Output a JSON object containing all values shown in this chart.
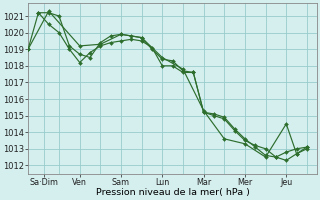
{
  "background_color": "#d5eeee",
  "grid_color": "#99cccc",
  "line_color": "#2d6e2d",
  "marker_color": "#2d6e2d",
  "xlabel": "Pression niveau de la mer( hPa )",
  "ylim": [
    1011.5,
    1021.8
  ],
  "yticks": [
    1012,
    1013,
    1014,
    1015,
    1016,
    1017,
    1018,
    1019,
    1020,
    1021
  ],
  "xlim": [
    0,
    28
  ],
  "x_day_boundaries": [
    3,
    7,
    11,
    15,
    19,
    23,
    27
  ],
  "x_tick_positions": [
    1.5,
    5,
    9,
    13,
    17,
    21,
    25
  ],
  "x_tick_labels": [
    "Sa·Dim",
    "Ven",
    "Sam",
    "Lun",
    "Mar",
    "Mer",
    "Jeu"
  ],
  "series": [
    {
      "x": [
        0,
        1,
        2,
        3,
        4,
        5,
        6,
        7,
        8,
        9,
        10,
        11,
        12,
        13,
        14,
        15,
        16,
        17,
        18,
        19,
        20,
        21,
        22,
        23,
        24,
        25,
        26,
        27
      ],
      "y": [
        1019.0,
        1021.2,
        1021.2,
        1021.0,
        1019.2,
        1018.7,
        1018.5,
        1019.4,
        1019.8,
        1019.9,
        1019.8,
        1019.7,
        1019.0,
        1018.4,
        1018.3,
        1017.7,
        1017.6,
        1015.2,
        1015.0,
        1014.8,
        1014.1,
        1013.5,
        1013.2,
        1013.0,
        1012.5,
        1012.3,
        1012.7,
        1013.0
      ]
    },
    {
      "x": [
        1,
        2,
        3,
        4,
        5,
        6,
        7,
        8,
        9,
        10,
        11,
        12,
        13,
        14,
        15,
        16,
        17,
        18,
        19,
        20,
        21,
        22,
        23,
        24,
        25,
        26,
        27
      ],
      "y": [
        1021.2,
        1020.5,
        1020.0,
        1019.0,
        1018.2,
        1018.8,
        1019.2,
        1019.4,
        1019.5,
        1019.6,
        1019.5,
        1019.1,
        1018.0,
        1018.0,
        1017.6,
        1017.6,
        1015.2,
        1015.1,
        1014.9,
        1014.2,
        1013.6,
        1013.1,
        1012.6,
        1012.5,
        1012.8,
        1013.0,
        1013.1
      ]
    },
    {
      "x": [
        0,
        2,
        5,
        7,
        9,
        11,
        13,
        15,
        17,
        19,
        21,
        23,
        25,
        26,
        27
      ],
      "y": [
        1019.0,
        1021.3,
        1019.2,
        1019.3,
        1019.9,
        1019.7,
        1018.5,
        1017.8,
        1015.3,
        1013.6,
        1013.3,
        1012.5,
        1014.5,
        1012.7,
        1013.1
      ]
    }
  ]
}
